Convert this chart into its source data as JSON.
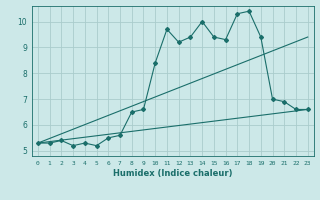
{
  "xlabel": "Humidex (Indice chaleur)",
  "bg_color": "#cce8e8",
  "grid_color": "#aacccc",
  "line_color": "#1a6e6a",
  "xlim": [
    -0.5,
    23.5
  ],
  "ylim": [
    4.8,
    10.6
  ],
  "yticks": [
    5,
    6,
    7,
    8,
    9,
    10
  ],
  "xticks": [
    0,
    1,
    2,
    3,
    4,
    5,
    6,
    7,
    8,
    9,
    10,
    11,
    12,
    13,
    14,
    15,
    16,
    17,
    18,
    19,
    20,
    21,
    22,
    23
  ],
  "series1_x": [
    0,
    1,
    2,
    3,
    4,
    5,
    6,
    7,
    8,
    9,
    10,
    11,
    12,
    13,
    14,
    15,
    16,
    17,
    18,
    19,
    20,
    21,
    22,
    23
  ],
  "series1_y": [
    5.3,
    5.3,
    5.4,
    5.2,
    5.3,
    5.2,
    5.5,
    5.6,
    6.5,
    6.6,
    8.4,
    9.7,
    9.2,
    9.4,
    10.0,
    9.4,
    9.3,
    10.3,
    10.4,
    9.4,
    7.0,
    6.9,
    6.6,
    6.6
  ],
  "series2_x": [
    0,
    23
  ],
  "series2_y": [
    5.3,
    9.4
  ],
  "series3_x": [
    0,
    23
  ],
  "series3_y": [
    5.3,
    6.6
  ]
}
